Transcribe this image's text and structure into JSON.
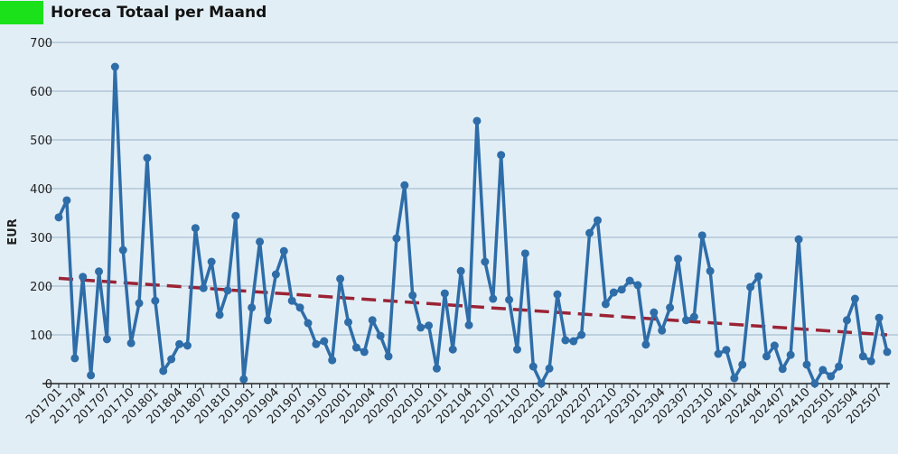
{
  "chart_data": {
    "type": "line",
    "title": "Horeca Totaal per Maand",
    "xlabel": "",
    "ylabel": "EUR",
    "ylim": [
      0,
      700
    ],
    "yticks": [
      0,
      100,
      200,
      300,
      400,
      500,
      600,
      700
    ],
    "grid": true,
    "legend": "none",
    "colors": {
      "series": "#2e6da8",
      "trend": "#9b2335",
      "title_swatch": "#1be11b",
      "grid": "#a9bfcf"
    },
    "x": [
      "201701",
      "201702",
      "201703",
      "201704",
      "201705",
      "201706",
      "201707",
      "201708",
      "201709",
      "201710",
      "201711",
      "201712",
      "201801",
      "201802",
      "201803",
      "201804",
      "201805",
      "201806",
      "201807",
      "201808",
      "201809",
      "201810",
      "201811",
      "201812",
      "201901",
      "201902",
      "201903",
      "201904",
      "201905",
      "201906",
      "201907",
      "201908",
      "201909",
      "201910",
      "201911",
      "201912",
      "202001",
      "202002",
      "202003",
      "202004",
      "202005",
      "202006",
      "202007",
      "202008",
      "202009",
      "202010",
      "202011",
      "202012",
      "202101",
      "202102",
      "202103",
      "202104",
      "202105",
      "202106",
      "202107",
      "202108",
      "202109",
      "202110",
      "202111",
      "202112",
      "202201",
      "202202",
      "202203",
      "202204",
      "202205",
      "202206",
      "202207",
      "202208",
      "202209",
      "202210",
      "202211",
      "202212",
      "202301",
      "202302",
      "202303",
      "202304",
      "202305",
      "202306",
      "202307",
      "202308",
      "202309",
      "202310",
      "202311",
      "202312",
      "202401",
      "202402",
      "202403",
      "202404",
      "202405",
      "202406",
      "202407",
      "202408",
      "202409",
      "202410",
      "202411",
      "202412",
      "202501",
      "202502",
      "202503",
      "202504",
      "202505",
      "202506",
      "202507",
      "202508"
    ],
    "xtick_labels": [
      "201701",
      "201704",
      "201707",
      "201710",
      "201801",
      "201804",
      "201807",
      "201810",
      "201901",
      "201904",
      "201907",
      "201910",
      "202001",
      "202004",
      "202007",
      "202010",
      "202101",
      "202104",
      "202107",
      "202110",
      "202201",
      "202204",
      "202207",
      "202210",
      "202301",
      "202304",
      "202307",
      "202310",
      "202401",
      "202404",
      "202407",
      "202410",
      "202501",
      "202504",
      "202507"
    ],
    "series": [
      {
        "name": "Horeca Totaal",
        "values": [
          341,
          376,
          52,
          219,
          17,
          230,
          91,
          650,
          274,
          83,
          165,
          463,
          170,
          26,
          50,
          81,
          78,
          319,
          196,
          250,
          141,
          191,
          344,
          9,
          156,
          291,
          130,
          224,
          272,
          170,
          156,
          124,
          81,
          87,
          48,
          215,
          126,
          74,
          65,
          130,
          98,
          56,
          298,
          407,
          181,
          115,
          119,
          31,
          185,
          70,
          231,
          120,
          539,
          250,
          174,
          469,
          172,
          70,
          267,
          35,
          0,
          31,
          183,
          89,
          87,
          100,
          309,
          335,
          163,
          187,
          193,
          211,
          202,
          80,
          146,
          109,
          156,
          256,
          130,
          137,
          304,
          231,
          61,
          69,
          11,
          39,
          198,
          220,
          56,
          78,
          30,
          59,
          296,
          39,
          0,
          28,
          15,
          35,
          130,
          174,
          56,
          46,
          135,
          65
        ]
      },
      {
        "name": "Trend",
        "style": "dashed",
        "values_start_end": [
          216,
          100
        ]
      }
    ]
  }
}
